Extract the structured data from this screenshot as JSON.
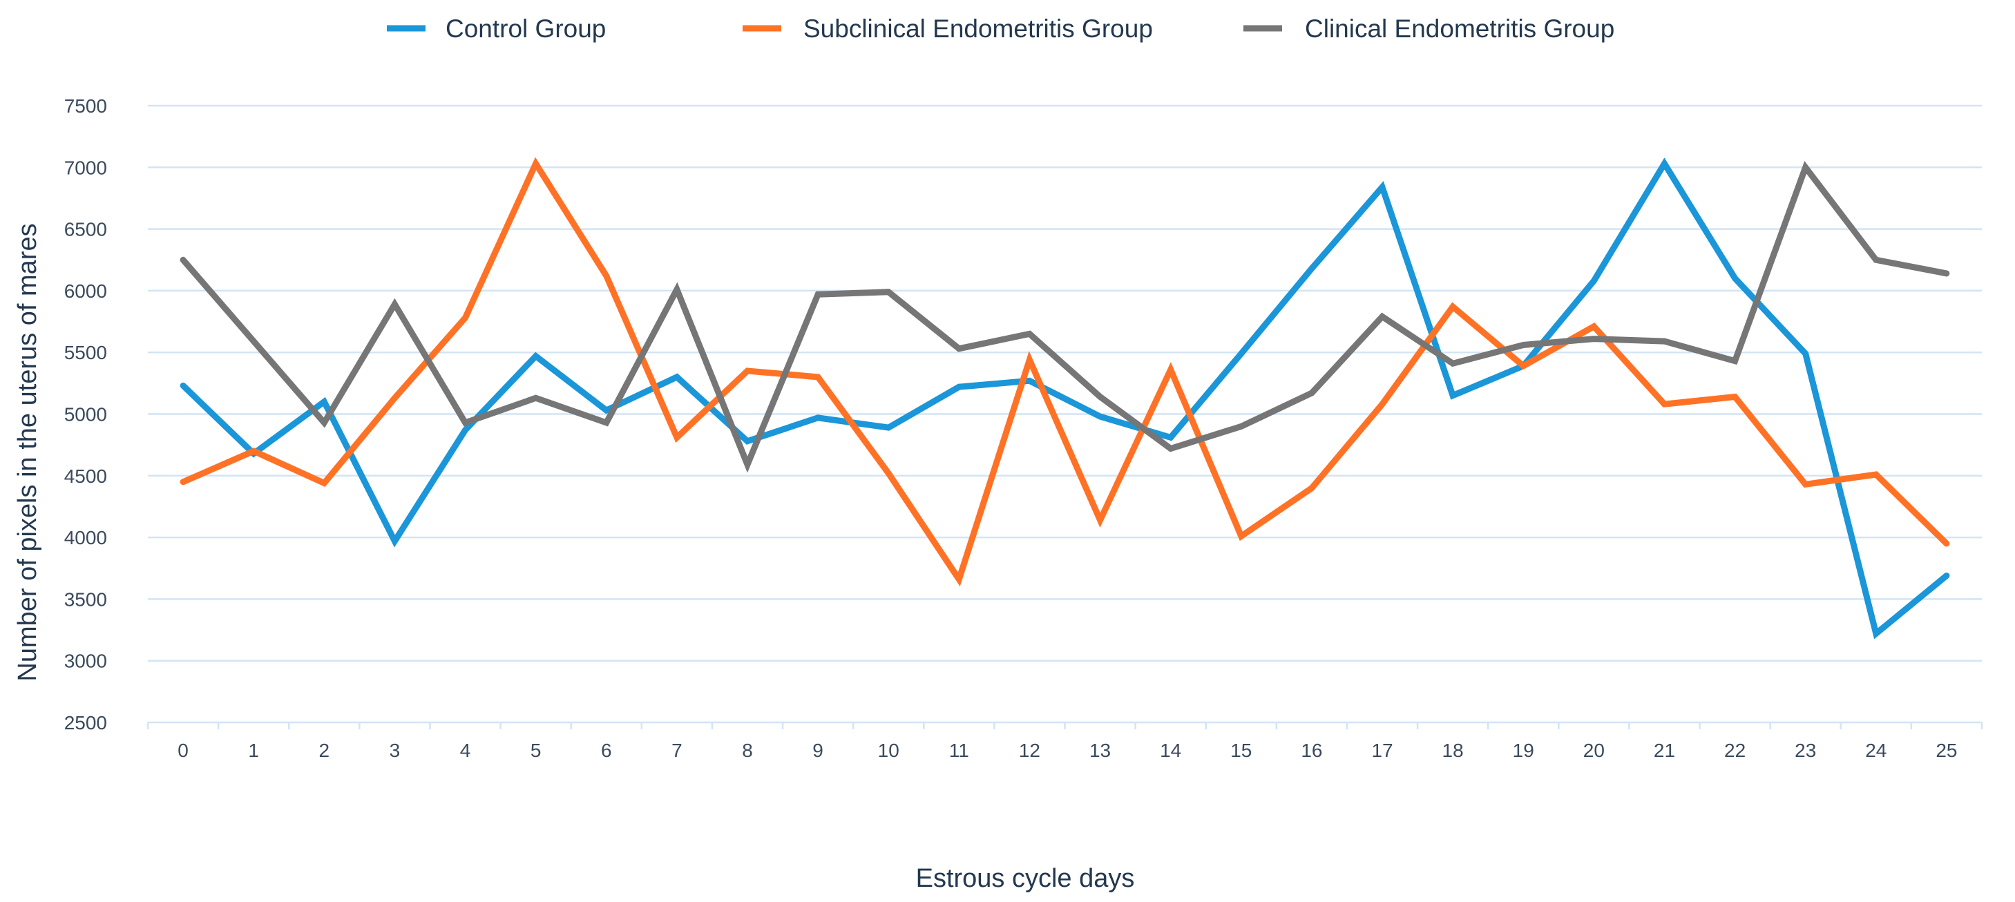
{
  "chart_data": {
    "type": "line",
    "title": "",
    "xlabel": "Estrous cycle days",
    "ylabel": "Number of pixels in the uterus of mares",
    "x": [
      0,
      1,
      2,
      3,
      4,
      5,
      6,
      7,
      8,
      9,
      10,
      11,
      12,
      13,
      14,
      15,
      16,
      17,
      18,
      19,
      20,
      21,
      22,
      23,
      24,
      25
    ],
    "x_tick_labels": [
      "0",
      "1",
      "2",
      "3",
      "4",
      "5",
      "6",
      "7",
      "8",
      "9",
      "10",
      "11",
      "12",
      "13",
      "14",
      "15",
      "16",
      "17",
      "18",
      "19",
      "20",
      "21",
      "22",
      "23",
      "24",
      "25"
    ],
    "ylim": [
      2500,
      7500
    ],
    "y_ticks": [
      2500,
      3000,
      3500,
      4000,
      4500,
      5000,
      5500,
      6000,
      6500,
      7000,
      7500
    ],
    "y_tick_labels": [
      "2500",
      "3000",
      "3500",
      "4000",
      "4500",
      "5000",
      "5500",
      "6000",
      "6500",
      "7000",
      "7500"
    ],
    "grid": "horizontal",
    "legend_position": "top-center",
    "series": [
      {
        "name": "Control Group",
        "color": "#1a96d9",
        "values": [
          5230,
          4680,
          5100,
          3970,
          4870,
          5470,
          5030,
          5300,
          4780,
          4970,
          4890,
          5220,
          5270,
          4980,
          4810,
          5490,
          6180,
          6840,
          5150,
          5390,
          6080,
          7030,
          6100,
          5490,
          3220,
          3690
        ]
      },
      {
        "name": "Subclinical Endometritis Group",
        "color": "#ff7226",
        "values": [
          4450,
          4700,
          4440,
          5130,
          5780,
          7030,
          6120,
          4810,
          5350,
          5300,
          4520,
          3660,
          5440,
          4140,
          5360,
          4010,
          4400,
          5080,
          5870,
          5390,
          5710,
          5080,
          5140,
          4430,
          4510,
          3950
        ]
      },
      {
        "name": "Clinical Endometritis Group",
        "color": "#767676",
        "values": [
          6250,
          5590,
          4930,
          5890,
          4930,
          5130,
          4930,
          6010,
          4590,
          5970,
          5990,
          5530,
          5650,
          5140,
          4720,
          4900,
          5170,
          5790,
          5410,
          5560,
          5610,
          5590,
          5430,
          7000,
          6250,
          6140
        ]
      }
    ]
  }
}
